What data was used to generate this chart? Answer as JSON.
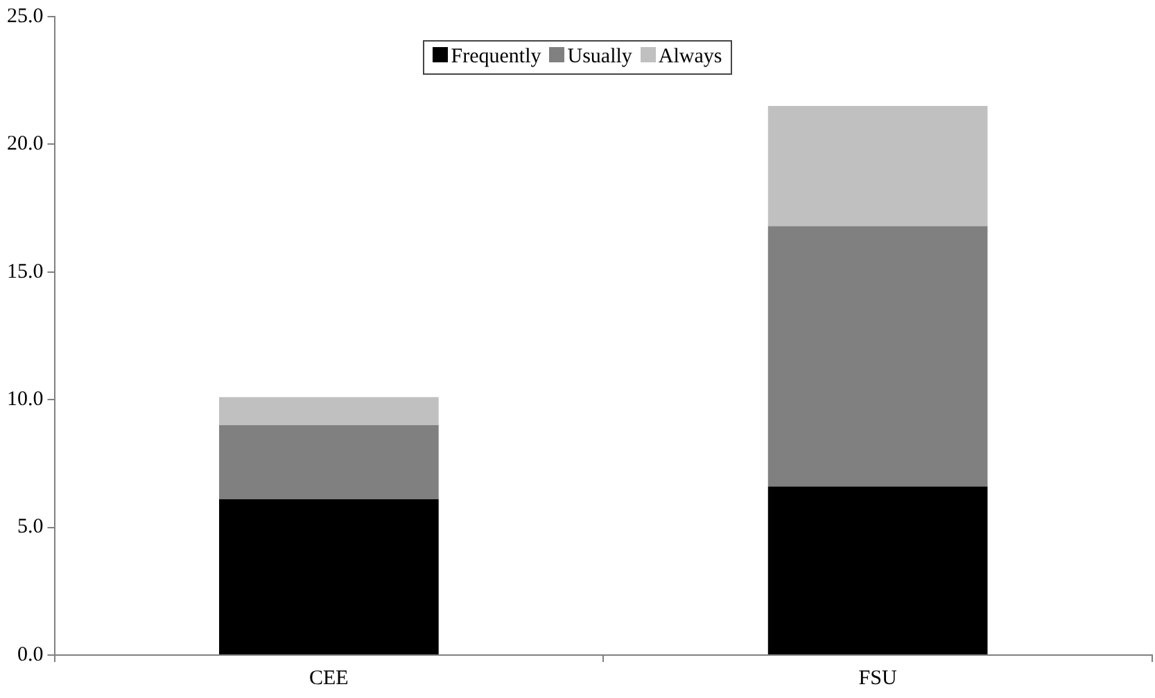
{
  "chart_data": {
    "type": "bar",
    "stacked": true,
    "categories": [
      "CEE",
      "FSU"
    ],
    "series": [
      {
        "name": "Frequently",
        "color": "#000000",
        "values": [
          6.1,
          6.6
        ]
      },
      {
        "name": "Usually",
        "color": "#808080",
        "values": [
          2.9,
          10.2
        ]
      },
      {
        "name": "Always",
        "color": "#c0c0c0",
        "values": [
          1.1,
          4.7
        ]
      }
    ],
    "ylim": [
      0,
      25
    ],
    "yticks": [
      {
        "value": 0,
        "label": "0.0"
      },
      {
        "value": 5,
        "label": "5.0"
      },
      {
        "value": 10,
        "label": "10.0"
      },
      {
        "value": 15,
        "label": "15.0"
      },
      {
        "value": 20,
        "label": "20.0"
      },
      {
        "value": 25,
        "label": "25.0"
      }
    ],
    "grid": false,
    "legend": "top"
  }
}
